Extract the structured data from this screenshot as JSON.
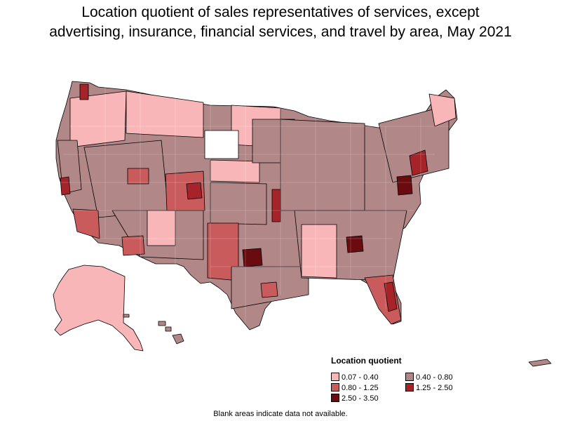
{
  "title_line1": "Location quotient of sales representatives of services, except",
  "title_line2": "advertising, insurance, financial services, and travel by area, May 2021",
  "legend": {
    "title": "Location quotient",
    "items": [
      {
        "label": "0.07 - 0.40",
        "color": "#f9b6b9"
      },
      {
        "label": "0.40 - 0.80",
        "color": "#b18787"
      },
      {
        "label": "0.80 - 1.25",
        "color": "#c95b5c"
      },
      {
        "label": "1.25 - 2.50",
        "color": "#a6232a"
      },
      {
        "label": "2.50 - 3.50",
        "color": "#6a0b10"
      }
    ]
  },
  "blank_color": "#ffffff",
  "note": "Blank areas indicate data not available."
}
